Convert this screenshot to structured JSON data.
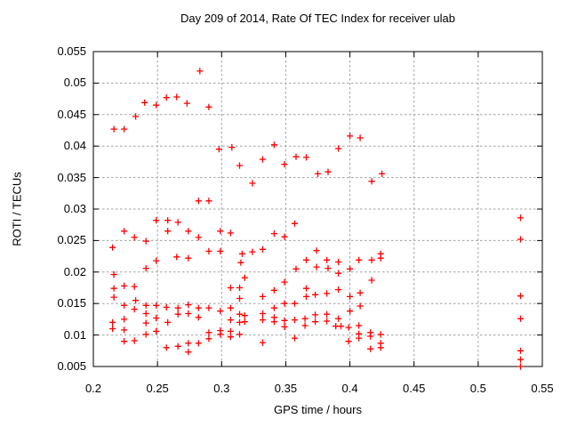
{
  "colors": {
    "marker": "#ff0000",
    "grid": "#a0a0a0",
    "axis": "#000000",
    "text": "#000000",
    "background": "#ffffff"
  },
  "chart_data": {
    "type": "scatter",
    "title": "Day 209 of 2014, Rate Of TEC Index for receiver ulab",
    "xlabel": "GPS time / hours",
    "ylabel": "ROTI / TECUs",
    "xlim": [
      0.2,
      0.55
    ],
    "ylim": [
      0.005,
      0.055
    ],
    "x_ticks": [
      0.2,
      0.25,
      0.3,
      0.35,
      0.4,
      0.45,
      0.5,
      0.55
    ],
    "x_tick_labels": [
      "0.2",
      "0.25",
      "0.3",
      "0.35",
      "0.4",
      "0.45",
      "0.5",
      "0.55"
    ],
    "y_ticks": [
      0.005,
      0.01,
      0.015,
      0.02,
      0.025,
      0.03,
      0.035,
      0.04,
      0.045,
      0.05,
      0.055
    ],
    "y_tick_labels": [
      "0.005",
      "0.01",
      "0.015",
      "0.02",
      "0.025",
      "0.03",
      "0.035",
      "0.04",
      "0.045",
      "0.05",
      "0.055"
    ],
    "grid": true,
    "legend": false,
    "marker": {
      "shape": "plus",
      "color": "#ff0000"
    },
    "series": [
      {
        "name": "ROTI",
        "points": [
          [
            0.216,
            0.0427
          ],
          [
            0.224,
            0.0427
          ],
          [
            0.233,
            0.0447
          ],
          [
            0.24,
            0.0469
          ],
          [
            0.249,
            0.0465
          ],
          [
            0.257,
            0.0477
          ],
          [
            0.265,
            0.0478
          ],
          [
            0.273,
            0.0468
          ],
          [
            0.283,
            0.0519
          ],
          [
            0.29,
            0.0462
          ],
          [
            0.298,
            0.0395
          ],
          [
            0.308,
            0.0398
          ],
          [
            0.314,
            0.0369
          ],
          [
            0.332,
            0.0379
          ],
          [
            0.341,
            0.0402
          ],
          [
            0.349,
            0.0371
          ],
          [
            0.358,
            0.0383
          ],
          [
            0.366,
            0.0382
          ],
          [
            0.391,
            0.0396
          ],
          [
            0.4,
            0.0416
          ],
          [
            0.408,
            0.0413
          ],
          [
            0.375,
            0.0356
          ],
          [
            0.383,
            0.0359
          ],
          [
            0.324,
            0.0341
          ],
          [
            0.417,
            0.0344
          ],
          [
            0.425,
            0.0356
          ],
          [
            0.282,
            0.0313
          ],
          [
            0.29,
            0.0313
          ],
          [
            0.249,
            0.0282
          ],
          [
            0.258,
            0.0282
          ],
          [
            0.266,
            0.0279
          ],
          [
            0.258,
            0.0265
          ],
          [
            0.274,
            0.0265
          ],
          [
            0.224,
            0.0265
          ],
          [
            0.232,
            0.0255
          ],
          [
            0.241,
            0.0249
          ],
          [
            0.282,
            0.0255
          ],
          [
            0.215,
            0.0239
          ],
          [
            0.29,
            0.0233
          ],
          [
            0.299,
            0.0265
          ],
          [
            0.307,
            0.0262
          ],
          [
            0.299,
            0.0233
          ],
          [
            0.249,
            0.0218
          ],
          [
            0.265,
            0.0224
          ],
          [
            0.274,
            0.0222
          ],
          [
            0.241,
            0.0206
          ],
          [
            0.216,
            0.0196
          ],
          [
            0.315,
            0.0215
          ],
          [
            0.357,
            0.0277
          ],
          [
            0.341,
            0.0261
          ],
          [
            0.349,
            0.0256
          ],
          [
            0.324,
            0.0232
          ],
          [
            0.332,
            0.0236
          ],
          [
            0.374,
            0.0234
          ],
          [
            0.316,
            0.0229
          ],
          [
            0.366,
            0.0219
          ],
          [
            0.374,
            0.0208
          ],
          [
            0.382,
            0.0219
          ],
          [
            0.391,
            0.0216
          ],
          [
            0.407,
            0.0219
          ],
          [
            0.417,
            0.0219
          ],
          [
            0.424,
            0.0229
          ],
          [
            0.424,
            0.0222
          ],
          [
            0.358,
            0.0205
          ],
          [
            0.4,
            0.0205
          ],
          [
            0.391,
            0.0198
          ],
          [
            0.383,
            0.0206
          ],
          [
            0.216,
            0.0174
          ],
          [
            0.224,
            0.0178
          ],
          [
            0.232,
            0.0177
          ],
          [
            0.216,
            0.016
          ],
          [
            0.224,
            0.0147
          ],
          [
            0.233,
            0.0155
          ],
          [
            0.232,
            0.0141
          ],
          [
            0.241,
            0.0147
          ],
          [
            0.241,
            0.0134
          ],
          [
            0.249,
            0.0147
          ],
          [
            0.249,
            0.0127
          ],
          [
            0.241,
            0.0119
          ],
          [
            0.257,
            0.0144
          ],
          [
            0.258,
            0.012
          ],
          [
            0.266,
            0.0143
          ],
          [
            0.266,
            0.0133
          ],
          [
            0.274,
            0.0148
          ],
          [
            0.274,
            0.0134
          ],
          [
            0.282,
            0.0143
          ],
          [
            0.282,
            0.0128
          ],
          [
            0.29,
            0.0143
          ],
          [
            0.299,
            0.0138
          ],
          [
            0.307,
            0.0143
          ],
          [
            0.307,
            0.0124
          ],
          [
            0.314,
            0.0133
          ],
          [
            0.314,
            0.012
          ],
          [
            0.215,
            0.012
          ],
          [
            0.215,
            0.011
          ],
          [
            0.224,
            0.0125
          ],
          [
            0.224,
            0.0108
          ],
          [
            0.241,
            0.0101
          ],
          [
            0.224,
            0.009
          ],
          [
            0.232,
            0.0091
          ],
          [
            0.249,
            0.0106
          ],
          [
            0.257,
            0.008
          ],
          [
            0.266,
            0.0082
          ],
          [
            0.274,
            0.0087
          ],
          [
            0.274,
            0.0073
          ],
          [
            0.282,
            0.0087
          ],
          [
            0.29,
            0.0104
          ],
          [
            0.29,
            0.0094
          ],
          [
            0.299,
            0.0101
          ],
          [
            0.299,
            0.0107
          ],
          [
            0.307,
            0.0106
          ],
          [
            0.307,
            0.0097
          ],
          [
            0.314,
            0.0101
          ],
          [
            0.307,
            0.0175
          ],
          [
            0.314,
            0.0175
          ],
          [
            0.314,
            0.0158
          ],
          [
            0.318,
            0.0191
          ],
          [
            0.417,
            0.0187
          ],
          [
            0.349,
            0.0184
          ],
          [
            0.341,
            0.0171
          ],
          [
            0.332,
            0.0161
          ],
          [
            0.366,
            0.0174
          ],
          [
            0.366,
            0.0161
          ],
          [
            0.373,
            0.0164
          ],
          [
            0.382,
            0.0166
          ],
          [
            0.391,
            0.0172
          ],
          [
            0.4,
            0.0161
          ],
          [
            0.408,
            0.0167
          ],
          [
            0.349,
            0.015
          ],
          [
            0.357,
            0.015
          ],
          [
            0.341,
            0.0143
          ],
          [
            0.4,
            0.0138
          ],
          [
            0.408,
            0.0146
          ],
          [
            0.318,
            0.0131
          ],
          [
            0.318,
            0.0121
          ],
          [
            0.332,
            0.0134
          ],
          [
            0.332,
            0.0124
          ],
          [
            0.341,
            0.0128
          ],
          [
            0.341,
            0.0121
          ],
          [
            0.349,
            0.0123
          ],
          [
            0.349,
            0.0113
          ],
          [
            0.357,
            0.0124
          ],
          [
            0.365,
            0.0126
          ],
          [
            0.365,
            0.0115
          ],
          [
            0.373,
            0.0132
          ],
          [
            0.373,
            0.0121
          ],
          [
            0.382,
            0.0133
          ],
          [
            0.382,
            0.0122
          ],
          [
            0.391,
            0.0126
          ],
          [
            0.389,
            0.0114
          ],
          [
            0.393,
            0.0114
          ],
          [
            0.399,
            0.0112
          ],
          [
            0.407,
            0.0115
          ],
          [
            0.407,
            0.0102
          ],
          [
            0.399,
            0.009
          ],
          [
            0.407,
            0.0095
          ],
          [
            0.416,
            0.0104
          ],
          [
            0.416,
            0.0098
          ],
          [
            0.424,
            0.0101
          ],
          [
            0.424,
            0.0087
          ],
          [
            0.416,
            0.0078
          ],
          [
            0.424,
            0.008
          ],
          [
            0.332,
            0.0088
          ],
          [
            0.357,
            0.0095
          ],
          [
            0.533,
            0.0286
          ],
          [
            0.533,
            0.0252
          ],
          [
            0.533,
            0.0162
          ],
          [
            0.533,
            0.0126
          ],
          [
            0.533,
            0.0075
          ],
          [
            0.533,
            0.0061
          ],
          [
            0.533,
            0.005
          ]
        ]
      }
    ]
  }
}
